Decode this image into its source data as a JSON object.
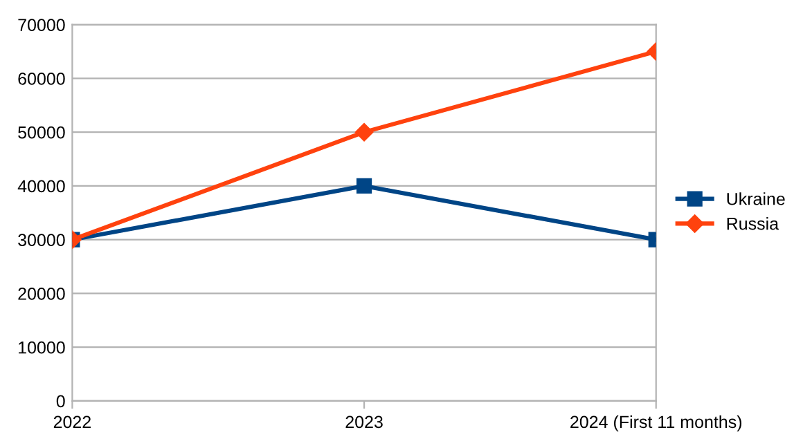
{
  "chart_data": {
    "type": "line",
    "categories": [
      "2022",
      "2023",
      "2024 (First 11 months)"
    ],
    "series": [
      {
        "name": "Ukraine",
        "color": "#004586",
        "marker": "square",
        "values": [
          30000,
          40000,
          30000
        ]
      },
      {
        "name": "Russia",
        "color": "#ff420e",
        "marker": "diamond",
        "values": [
          30000,
          50000,
          65000
        ]
      }
    ],
    "ylim": [
      0,
      70000
    ],
    "yticks": [
      0,
      10000,
      20000,
      30000,
      40000,
      50000,
      60000,
      70000
    ],
    "grid": "y",
    "legend": "right",
    "line_style": "solid"
  }
}
